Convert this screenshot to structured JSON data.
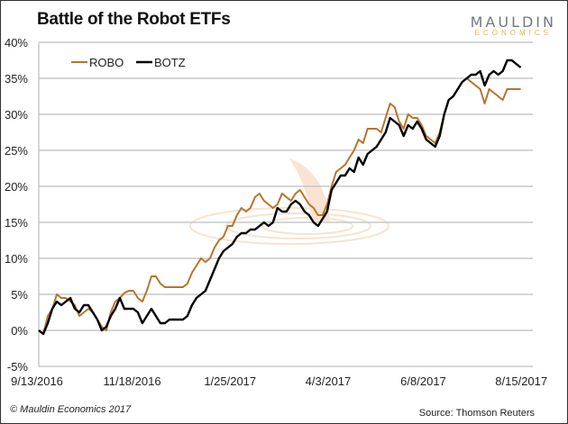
{
  "chart_data": {
    "type": "line",
    "title": "Battle of the Robot ETFs",
    "xlabel": "",
    "ylabel": "",
    "ylim": [
      -5,
      40
    ],
    "yticks": [
      -5,
      0,
      5,
      10,
      15,
      20,
      25,
      30,
      35,
      40
    ],
    "ytick_labels": [
      "-5%",
      "0%",
      "5%",
      "10%",
      "15%",
      "20%",
      "25%",
      "30%",
      "35%",
      "40%"
    ],
    "x_unit": "days since 9/13/2016",
    "xlim": [
      0,
      344
    ],
    "xtick_days": [
      0,
      66,
      134,
      202,
      268,
      336
    ],
    "xtick_labels": [
      "9/13/2016",
      "11/18/2016",
      "1/25/2017",
      "4/3/2017",
      "6/8/2017",
      "8/15/2017"
    ],
    "sample_start_day": 1.25,
    "sample_step_days": 3.125,
    "grid": true,
    "legend_position": "top-left",
    "series": [
      {
        "name": "ROBO",
        "color": "#b8732e",
        "values": [
          0,
          -0.5,
          2,
          3,
          5,
          4.5,
          4.5,
          4,
          3.5,
          2,
          2.5,
          3,
          2.5,
          1.5,
          0.5,
          0,
          2.5,
          4,
          4.5,
          5.2,
          5.5,
          5.5,
          4.5,
          4,
          5.5,
          7.5,
          7.5,
          6.5,
          6,
          6,
          6,
          6,
          6,
          6.5,
          8,
          9,
          10,
          9.5,
          10,
          11.5,
          12.5,
          13,
          14.5,
          14.5,
          16,
          17,
          16.5,
          17,
          18.5,
          19,
          18,
          17.5,
          17,
          17.5,
          19,
          18.5,
          18,
          19,
          19.5,
          18.5,
          17.5,
          17,
          16,
          16,
          17.5,
          20,
          22,
          22.5,
          23,
          24,
          25,
          26.5,
          26,
          28,
          28,
          28,
          27.5,
          29.5,
          31.5,
          31,
          29,
          28,
          30,
          29.5,
          29.5,
          28.5,
          27,
          26.5,
          26,
          27.5,
          30,
          32,
          32.5,
          33.5,
          34.5,
          35,
          34.5,
          34,
          33.5,
          31.5,
          33.5,
          33,
          32.5,
          32,
          33.5,
          33.5,
          33.5,
          33.5
        ]
      },
      {
        "name": "BOTZ",
        "color": "#000000",
        "values": [
          0,
          -0.5,
          1,
          3,
          4,
          3.5,
          4,
          4.5,
          3,
          2.5,
          3.5,
          3.5,
          2.5,
          1.5,
          0,
          0.5,
          2,
          3,
          4.5,
          3,
          3,
          3,
          2.5,
          1,
          2,
          3,
          2,
          1,
          1,
          1.5,
          1.5,
          1.5,
          1.5,
          2,
          3.5,
          4.5,
          5,
          5.5,
          7,
          8.5,
          10,
          11,
          11.5,
          12,
          13,
          13.5,
          13.5,
          14,
          14,
          14.5,
          15,
          14.5,
          15,
          17,
          16.5,
          16.5,
          17.5,
          18,
          17.5,
          16.5,
          16,
          15,
          14.5,
          15.5,
          16.5,
          19.5,
          20.5,
          21.5,
          21.5,
          22.5,
          22,
          24,
          23,
          24.5,
          25,
          25.5,
          26.5,
          27.5,
          29.5,
          29,
          28.5,
          27,
          28.5,
          28,
          29,
          28,
          26.5,
          26,
          25.5,
          27,
          30,
          32,
          32.5,
          33.5,
          34.5,
          35,
          35.5,
          35.5,
          36,
          34,
          35.5,
          36,
          35.5,
          36,
          37.5,
          37.5,
          37,
          36.5
        ]
      }
    ]
  },
  "branding": {
    "logo_line1": "MAULDIN",
    "logo_line2": "ECONOMICS"
  },
  "footer": {
    "copyright": "© Mauldin Economics 2017",
    "source": "Source: Thomson Reuters"
  }
}
